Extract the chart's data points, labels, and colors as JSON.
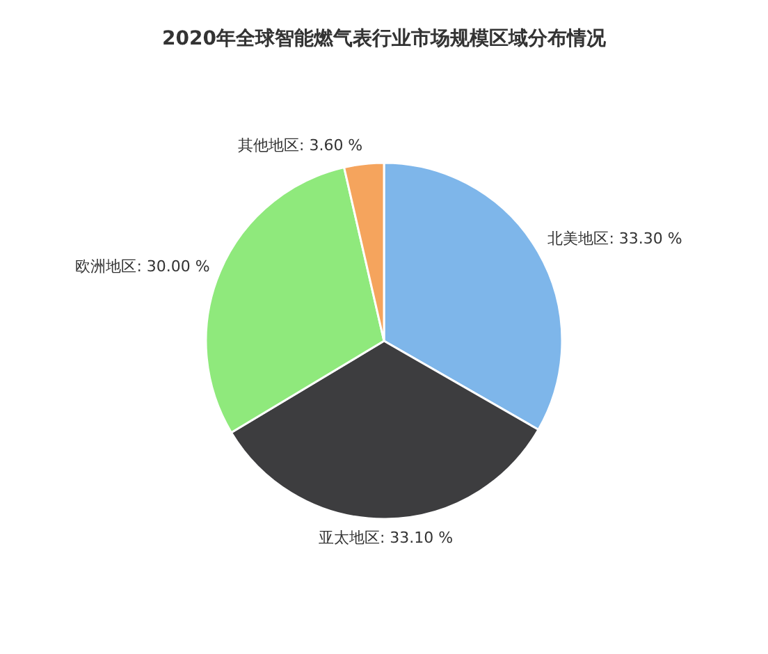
{
  "chart_data": {
    "type": "pie",
    "title": "2020年全球智能燃气表行业市场规模区域分布情况",
    "categories": [
      "北美地区",
      "亚太地区",
      "欧洲地区",
      "其他地区"
    ],
    "values": [
      33.3,
      33.1,
      30.0,
      3.6
    ],
    "value_labels": [
      "33.30 %",
      "33.10 %",
      "30.00 %",
      "3.60 %"
    ],
    "colors": [
      "#7eb6ea",
      "#3d3d3f",
      "#8fe97c",
      "#f5a45d"
    ],
    "legend": false
  }
}
